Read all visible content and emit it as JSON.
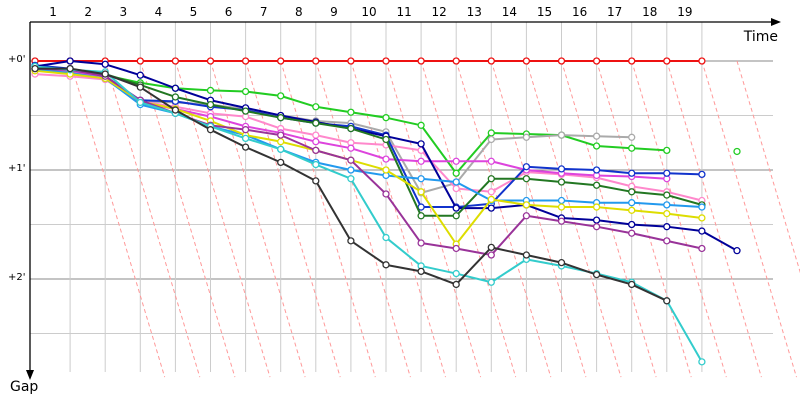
{
  "chart_data": {
    "type": "line",
    "title": "",
    "xlabel": "Time",
    "ylabel": "Gap",
    "x_ticks": [
      "1",
      "2",
      "3",
      "4",
      "5",
      "6",
      "7",
      "8",
      "9",
      "10",
      "11",
      "12",
      "13",
      "14",
      "15",
      "16",
      "17",
      "18",
      "19"
    ],
    "y_ticks": [
      "+0'",
      "+1'",
      "+2'"
    ],
    "x": [
      0,
      1,
      2,
      3,
      4,
      5,
      6,
      7,
      8,
      9,
      10,
      11,
      12,
      13,
      14,
      15,
      16,
      17,
      18,
      19,
      20
    ],
    "ylim": [
      0,
      3
    ],
    "grid": true,
    "colors": {
      "red": "#ee1111",
      "green": "#22cc22",
      "gray": "#aaaaaa",
      "pink": "#ff88cc",
      "magenta": "#dd44dd",
      "blue": "#1133cc",
      "navy": "#000099",
      "darkgreen": "#227722",
      "lightblue": "#2299ee",
      "yellow": "#dddd00",
      "purple": "#993399",
      "cyan": "#33cccc",
      "charcoal": "#333333",
      "lap_line": "#ff9999",
      "grid": "#cccccc"
    },
    "series": [
      {
        "color_key": "red",
        "values": [
          0.0,
          0.0,
          0.0,
          0.0,
          0.0,
          0.0,
          0.0,
          0.0,
          0.0,
          0.0,
          0.0,
          0.0,
          0.0,
          0.0,
          0.0,
          0.0,
          0.0,
          0.0,
          0.0,
          0.0,
          null
        ]
      },
      {
        "color_key": "green",
        "values": [
          0.05,
          0.08,
          0.13,
          0.2,
          0.25,
          0.27,
          0.28,
          0.32,
          0.42,
          0.47,
          0.52,
          0.59,
          1.03,
          0.66,
          0.67,
          0.68,
          0.78,
          0.8,
          0.82,
          null,
          0.83
        ]
      },
      {
        "color_key": "gray",
        "values": [
          0.07,
          0.1,
          0.15,
          0.37,
          0.38,
          0.4,
          0.44,
          0.5,
          0.55,
          0.57,
          0.65,
          1.21,
          1.12,
          0.72,
          0.7,
          0.68,
          0.69,
          0.7,
          null,
          null,
          null
        ]
      },
      {
        "color_key": "pink",
        "values": [
          0.12,
          0.14,
          0.17,
          0.37,
          0.42,
          0.48,
          0.51,
          0.62,
          0.68,
          0.75,
          0.77,
          0.82,
          1.17,
          1.2,
          1.02,
          1.04,
          1.07,
          1.15,
          1.2,
          1.28,
          null
        ]
      },
      {
        "color_key": "magenta",
        "values": [
          0.07,
          0.09,
          0.15,
          0.38,
          0.44,
          0.51,
          0.6,
          0.66,
          0.74,
          0.8,
          0.9,
          0.92,
          0.92,
          0.92,
          1.0,
          1.03,
          1.05,
          1.06,
          1.08,
          null,
          null
        ]
      },
      {
        "color_key": "blue",
        "values": [
          0.04,
          0.07,
          0.14,
          0.36,
          0.37,
          0.42,
          0.45,
          0.52,
          0.57,
          0.6,
          0.68,
          1.34,
          1.34,
          1.31,
          0.97,
          0.99,
          1.0,
          1.03,
          1.03,
          1.04,
          null
        ]
      },
      {
        "color_key": "navy",
        "values": [
          0.05,
          0.0,
          0.03,
          0.13,
          0.25,
          0.36,
          0.43,
          0.5,
          0.56,
          0.62,
          0.69,
          0.76,
          1.35,
          1.35,
          1.32,
          1.44,
          1.46,
          1.5,
          1.52,
          1.56,
          1.74
        ]
      },
      {
        "color_key": "darkgreen",
        "values": [
          0.07,
          0.08,
          0.12,
          0.22,
          0.33,
          0.4,
          0.46,
          0.52,
          0.57,
          0.62,
          0.72,
          1.42,
          1.42,
          1.08,
          1.08,
          1.11,
          1.14,
          1.2,
          1.23,
          1.32,
          null
        ]
      },
      {
        "color_key": "lightblue",
        "values": [
          0.08,
          0.11,
          0.16,
          0.4,
          0.48,
          0.6,
          0.68,
          0.81,
          0.93,
          1.0,
          1.05,
          1.08,
          1.11,
          1.28,
          1.28,
          1.28,
          1.3,
          1.3,
          1.32,
          1.34,
          null
        ]
      },
      {
        "color_key": "yellow",
        "values": [
          0.09,
          0.12,
          0.16,
          0.37,
          0.44,
          0.55,
          0.68,
          0.74,
          0.82,
          0.91,
          1.0,
          1.2,
          1.68,
          1.27,
          1.32,
          1.34,
          1.34,
          1.37,
          1.4,
          1.44,
          null
        ]
      },
      {
        "color_key": "purple",
        "values": [
          0.07,
          0.08,
          0.14,
          0.36,
          0.48,
          0.59,
          0.63,
          0.68,
          0.82,
          0.91,
          1.22,
          1.67,
          1.72,
          1.78,
          1.42,
          1.47,
          1.52,
          1.58,
          1.65,
          1.72,
          null
        ]
      },
      {
        "color_key": "cyan",
        "values": [
          0.05,
          0.08,
          0.1,
          0.38,
          0.48,
          0.6,
          0.71,
          0.81,
          0.95,
          1.08,
          1.62,
          1.88,
          1.95,
          2.03,
          1.82,
          1.88,
          1.95,
          2.03,
          2.2,
          2.76,
          null
        ]
      },
      {
        "color_key": "charcoal",
        "values": [
          0.07,
          0.07,
          0.12,
          0.24,
          0.45,
          0.63,
          0.79,
          0.93,
          1.1,
          1.65,
          1.87,
          1.93,
          2.05,
          1.71,
          1.78,
          1.85,
          1.96,
          2.05,
          2.2,
          null,
          null
        ]
      }
    ]
  }
}
